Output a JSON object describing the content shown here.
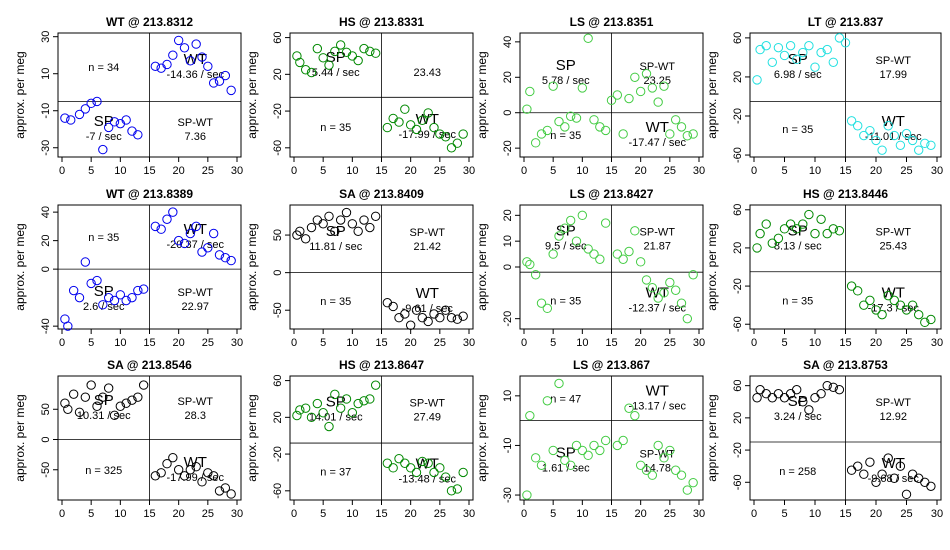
{
  "chart_data": [
    {
      "type": "scatter",
      "title": "WT @ 213.8312",
      "ylabel": "approx. per meg",
      "color": "#0000ee",
      "xlim": [
        0,
        30
      ],
      "ylim": [
        -35,
        32
      ],
      "xticks": [
        0,
        5,
        10,
        15,
        20,
        25,
        30
      ],
      "yticks": [
        30,
        10,
        -10,
        -30
      ],
      "split_x": 15,
      "split_y": -5,
      "quadrants": {
        "top_left": {
          "label": "",
          "rate": "",
          "n": "n = 34"
        },
        "top_right": {
          "label": "WT",
          "rate": "-14.36 / sec",
          "n": ""
        },
        "bottom_left": {
          "label": "SP",
          "rate": "-7 / sec",
          "n": ""
        },
        "bottom_right": {
          "label": "SP-WT",
          "rate": "7.36",
          "n": ""
        }
      },
      "x": [
        0.5,
        1.5,
        3,
        4,
        5,
        6,
        7,
        8,
        9,
        10,
        11,
        12,
        13,
        16,
        17,
        18,
        19,
        20,
        21,
        22,
        23,
        24,
        25,
        26,
        27,
        28,
        29
      ],
      "y": [
        -14,
        -15,
        -12,
        -9,
        -6,
        -5,
        -31,
        -19,
        -16,
        -17,
        -15,
        -21,
        -23,
        14,
        13,
        15,
        20,
        28,
        24,
        17,
        26,
        19,
        14,
        5,
        6,
        9,
        1
      ]
    },
    {
      "type": "scatter",
      "title": "HS @ 213.8331",
      "ylabel": "approx. per meg",
      "color": "#008800",
      "xlim": [
        0,
        30
      ],
      "ylim": [
        -70,
        65
      ],
      "xticks": [
        0,
        5,
        10,
        15,
        20,
        25,
        30
      ],
      "yticks": [
        60,
        20,
        -20,
        -60
      ],
      "split_x": 15,
      "split_y": -5,
      "quadrants": {
        "top_left": {
          "label": "SP",
          "rate": "5.44 / sec",
          "n": ""
        },
        "top_right": {
          "label": "",
          "rate": "23.43",
          "n": ""
        },
        "bottom_left": {
          "label": "",
          "rate": "",
          "n": "n = 35"
        },
        "bottom_right": {
          "label": "WT",
          "rate": "-17.99 / sec",
          "n": ""
        }
      },
      "x": [
        0.5,
        1,
        2,
        3,
        4,
        5,
        6,
        7,
        8,
        9,
        10,
        11,
        12,
        13,
        14,
        16,
        17,
        18,
        19,
        20,
        21,
        22,
        23,
        24,
        25,
        26,
        27,
        28,
        29
      ],
      "y": [
        40,
        33,
        25,
        22,
        48,
        38,
        30,
        45,
        52,
        44,
        40,
        35,
        48,
        45,
        43,
        -38,
        -28,
        -32,
        -18,
        -35,
        -40,
        -30,
        -22,
        -38,
        -45,
        -48,
        -60,
        -55,
        -45
      ]
    },
    {
      "type": "scatter",
      "title": "LS @ 213.8351",
      "ylabel": "approx. per meg",
      "color": "#44cc44",
      "xlim": [
        0,
        30
      ],
      "ylim": [
        -25,
        45
      ],
      "xticks": [
        0,
        5,
        10,
        15,
        20,
        25,
        30
      ],
      "yticks": [
        40,
        20,
        0,
        -20
      ],
      "split_x": 15,
      "split_y": 0,
      "quadrants": {
        "top_left": {
          "label": "SP",
          "rate": "5.78 / sec",
          "n": ""
        },
        "top_right": {
          "label": "SP-WT",
          "rate": "23.25",
          "n": ""
        },
        "bottom_left": {
          "label": "",
          "rate": "",
          "n": "n = 35"
        },
        "bottom_right": {
          "label": "WT",
          "rate": "-17.47 / sec",
          "n": ""
        }
      },
      "x": [
        0.5,
        1,
        2,
        3,
        4,
        5,
        6,
        7,
        8,
        9,
        10,
        11,
        12,
        13,
        14,
        15,
        16,
        17,
        18,
        19,
        20,
        21,
        22,
        23,
        24,
        25,
        26,
        27,
        28,
        29
      ],
      "y": [
        2,
        12,
        -17,
        -12,
        -10,
        15,
        -5,
        -8,
        -2,
        -3,
        14,
        42,
        -4,
        -8,
        -10,
        7,
        10,
        -12,
        8,
        20,
        12,
        22,
        14,
        6,
        15,
        -12,
        -4,
        -8,
        -13,
        -12
      ]
    },
    {
      "type": "scatter",
      "title": "LT @ 213.837",
      "ylabel": "approx. per meg",
      "color": "#22e0e0",
      "xlim": [
        0,
        30
      ],
      "ylim": [
        -62,
        65
      ],
      "xticks": [
        0,
        5,
        10,
        15,
        20,
        25,
        30
      ],
      "yticks": [
        60,
        20,
        -20,
        -60
      ],
      "split_x": 15,
      "split_y": -5,
      "quadrants": {
        "top_left": {
          "label": "SP",
          "rate": "6.98 / sec",
          "n": ""
        },
        "top_right": {
          "label": "SP-WT",
          "rate": "17.99",
          "n": ""
        },
        "bottom_left": {
          "label": "",
          "rate": "",
          "n": "n = 35"
        },
        "bottom_right": {
          "label": "WT",
          "rate": "-11.01 / sec",
          "n": ""
        }
      },
      "x": [
        0.5,
        1,
        2,
        3,
        4,
        5,
        6,
        7,
        8,
        9,
        10,
        11,
        12,
        13,
        14,
        15,
        16,
        17,
        18,
        19,
        20,
        21,
        22,
        23,
        24,
        25,
        26,
        27,
        28,
        29
      ],
      "y": [
        17,
        48,
        52,
        35,
        50,
        42,
        52,
        38,
        45,
        52,
        30,
        45,
        48,
        35,
        60,
        55,
        -25,
        -30,
        -40,
        -35,
        -45,
        -55,
        -30,
        -40,
        -50,
        -38,
        -45,
        -55,
        -48,
        -50
      ]
    },
    {
      "type": "scatter",
      "title": "WT @ 213.8389",
      "ylabel": "approx. per meg",
      "color": "#0000ee",
      "xlim": [
        0,
        30
      ],
      "ylim": [
        -42,
        45
      ],
      "xticks": [
        0,
        5,
        10,
        15,
        20,
        25,
        30
      ],
      "yticks": [
        40,
        20,
        0,
        -40
      ],
      "split_x": 15,
      "split_y": 0,
      "quadrants": {
        "top_left": {
          "label": "",
          "rate": "",
          "n": "n = 35"
        },
        "top_right": {
          "label": "WT",
          "rate": "-20.37 / sec",
          "n": ""
        },
        "bottom_left": {
          "label": "SP",
          "rate": "2.6 / sec",
          "n": ""
        },
        "bottom_right": {
          "label": "SP-WT",
          "rate": "22.97",
          "n": ""
        }
      },
      "x": [
        0.5,
        1,
        2,
        3,
        4,
        5,
        6,
        7,
        8,
        9,
        10,
        11,
        12,
        13,
        14,
        16,
        17,
        18,
        19,
        20,
        21,
        22,
        23,
        24,
        25,
        26,
        27,
        28,
        29
      ],
      "y": [
        -35,
        -40,
        -15,
        -20,
        5,
        -10,
        -8,
        -25,
        -20,
        -22,
        -18,
        -22,
        -20,
        -15,
        -14,
        30,
        28,
        35,
        40,
        20,
        18,
        25,
        30,
        12,
        15,
        25,
        10,
        8,
        6
      ]
    },
    {
      "type": "scatter",
      "title": "SA @ 213.8409",
      "ylabel": "approx. per meg",
      "color": "#000000",
      "xlim": [
        0,
        30
      ],
      "ylim": [
        -75,
        90
      ],
      "xticks": [
        0,
        5,
        10,
        15,
        20,
        25,
        30
      ],
      "yticks": [
        50,
        0,
        -50
      ],
      "split_x": 15,
      "split_y": 0,
      "quadrants": {
        "top_left": {
          "label": "SP",
          "rate": "11.81 / sec",
          "n": ""
        },
        "top_right": {
          "label": "SP-WT",
          "rate": "21.42",
          "n": ""
        },
        "bottom_left": {
          "label": "",
          "rate": "",
          "n": "n = 35"
        },
        "bottom_right": {
          "label": "WT",
          "rate": "-9.61 / sec",
          "n": ""
        }
      },
      "x": [
        0.5,
        1,
        2,
        3,
        4,
        5,
        6,
        7,
        8,
        9,
        10,
        11,
        12,
        13,
        14,
        16,
        17,
        18,
        19,
        20,
        21,
        22,
        23,
        24,
        25,
        26,
        27,
        28,
        29
      ],
      "y": [
        50,
        55,
        45,
        60,
        70,
        65,
        75,
        55,
        70,
        80,
        65,
        55,
        70,
        60,
        75,
        -40,
        -45,
        -60,
        -55,
        -70,
        -50,
        -60,
        -65,
        -55,
        -60,
        -50,
        -60,
        -62,
        -58
      ]
    },
    {
      "type": "scatter",
      "title": "LS @ 213.8427",
      "ylabel": "approx. per meg",
      "color": "#44cc44",
      "xlim": [
        0,
        30
      ],
      "ylim": [
        -24,
        24
      ],
      "xticks": [
        0,
        5,
        10,
        15,
        20,
        25,
        30
      ],
      "yticks": [
        20,
        10,
        0,
        -20
      ],
      "split_x": 15,
      "split_y": -2,
      "quadrants": {
        "top_left": {
          "label": "SP",
          "rate": "9.5 / sec",
          "n": ""
        },
        "top_right": {
          "label": "SP-WT",
          "rate": "21.87",
          "n": ""
        },
        "bottom_left": {
          "label": "",
          "rate": "",
          "n": "n = 35"
        },
        "bottom_right": {
          "label": "WT",
          "rate": "-12.37 / sec",
          "n": ""
        }
      },
      "x": [
        0.5,
        1,
        2,
        3,
        4,
        5,
        6,
        7,
        8,
        9,
        10,
        11,
        12,
        13,
        14,
        16,
        17,
        18,
        19,
        20,
        21,
        22,
        23,
        24,
        25,
        26,
        27,
        28,
        29
      ],
      "y": [
        2,
        1,
        -3,
        -14,
        -16,
        5,
        12,
        15,
        18,
        10,
        20,
        7,
        5,
        3,
        17,
        5,
        3,
        6,
        14,
        2,
        -5,
        -8,
        -12,
        -10,
        -6,
        -9,
        -14,
        -20,
        -3
      ]
    },
    {
      "type": "scatter",
      "title": "HS @ 213.8446",
      "ylabel": "approx. per meg",
      "color": "#008800",
      "xlim": [
        0,
        30
      ],
      "ylim": [
        -65,
        65
      ],
      "xticks": [
        0,
        5,
        10,
        15,
        20,
        25,
        30
      ],
      "yticks": [
        60,
        20,
        -20,
        -60
      ],
      "split_x": 15,
      "split_y": -5,
      "quadrants": {
        "top_left": {
          "label": "SP",
          "rate": "8.13 / sec",
          "n": ""
        },
        "top_right": {
          "label": "SP-WT",
          "rate": "25.43",
          "n": ""
        },
        "bottom_left": {
          "label": "",
          "rate": "",
          "n": "n = 35"
        },
        "bottom_right": {
          "label": "WT",
          "rate": "-17.3 / sec",
          "n": ""
        }
      },
      "x": [
        0.5,
        1,
        2,
        3,
        4,
        5,
        6,
        7,
        8,
        9,
        10,
        11,
        12,
        13,
        14,
        16,
        17,
        18,
        19,
        20,
        21,
        22,
        23,
        24,
        25,
        26,
        27,
        28,
        29
      ],
      "y": [
        20,
        35,
        45,
        25,
        30,
        40,
        45,
        40,
        45,
        55,
        35,
        50,
        35,
        40,
        38,
        -20,
        -25,
        -40,
        -35,
        -45,
        -50,
        -30,
        -35,
        -40,
        -45,
        -40,
        -50,
        -58,
        -55
      ]
    },
    {
      "type": "scatter",
      "title": "SA @ 213.8546",
      "ylabel": "approx. per meg",
      "color": "#000000",
      "xlim": [
        0,
        30
      ],
      "ylim": [
        -100,
        105
      ],
      "xticks": [
        0,
        5,
        10,
        15,
        20,
        25,
        30
      ],
      "yticks": [
        50,
        0,
        -50
      ],
      "split_x": 15,
      "split_y": 0,
      "quadrants": {
        "top_left": {
          "label": "SP",
          "rate": "10.31 / sec",
          "n": ""
        },
        "top_right": {
          "label": "SP-WT",
          "rate": "28.3",
          "n": ""
        },
        "bottom_left": {
          "label": "",
          "rate": "",
          "n": "n = 325"
        },
        "bottom_right": {
          "label": "WT",
          "rate": "-17.99 / sec",
          "n": ""
        }
      },
      "x": [
        0.5,
        1,
        2,
        3,
        4,
        5,
        6,
        7,
        8,
        9,
        10,
        11,
        12,
        13,
        14,
        16,
        17,
        18,
        19,
        20,
        21,
        22,
        23,
        24,
        25,
        26,
        27,
        28,
        29
      ],
      "y": [
        60,
        50,
        75,
        45,
        70,
        90,
        55,
        70,
        85,
        40,
        55,
        60,
        65,
        70,
        90,
        -60,
        -55,
        -40,
        -30,
        -50,
        -60,
        -50,
        -45,
        -70,
        -55,
        -60,
        -85,
        -80,
        -90
      ]
    },
    {
      "type": "scatter",
      "title": "HS @ 213.8647",
      "ylabel": "approx. per meg",
      "color": "#008800",
      "xlim": [
        0,
        30
      ],
      "ylim": [
        -70,
        65
      ],
      "xticks": [
        0,
        5,
        10,
        15,
        20,
        25,
        30
      ],
      "yticks": [
        60,
        20,
        -20,
        -60
      ],
      "split_x": 15,
      "split_y": -8,
      "quadrants": {
        "top_left": {
          "label": "SP",
          "rate": "14.01 / sec",
          "n": ""
        },
        "top_right": {
          "label": "SP-WT",
          "rate": "27.49",
          "n": ""
        },
        "bottom_left": {
          "label": "",
          "rate": "",
          "n": "n = 37"
        },
        "bottom_right": {
          "label": "WT",
          "rate": "-13.48 / sec",
          "n": ""
        }
      },
      "x": [
        0.5,
        1,
        2,
        3,
        4,
        5,
        6,
        7,
        8,
        9,
        10,
        11,
        12,
        13,
        14,
        16,
        17,
        18,
        19,
        20,
        21,
        22,
        23,
        24,
        25,
        26,
        27,
        28,
        29
      ],
      "y": [
        22,
        28,
        30,
        20,
        35,
        25,
        10,
        45,
        30,
        40,
        25,
        35,
        38,
        40,
        55,
        -30,
        -35,
        -25,
        -30,
        -35,
        -40,
        -28,
        -30,
        -40,
        -35,
        -45,
        -60,
        -58,
        -40
      ]
    },
    {
      "type": "scatter",
      "title": "LS @ 213.867",
      "ylabel": "approx. per meg",
      "color": "#44cc44",
      "xlim": [
        0,
        30
      ],
      "ylim": [
        -32,
        18
      ],
      "xticks": [
        0,
        5,
        10,
        15,
        20,
        25,
        30
      ],
      "yticks": [
        10,
        -10,
        -30
      ],
      "split_x": 15,
      "split_y": 0,
      "quadrants": {
        "top_left": {
          "label": "",
          "rate": "",
          "n": "n = 47"
        },
        "top_right": {
          "label": "WT",
          "rate": "-13.17 / sec",
          "n": ""
        },
        "bottom_left": {
          "label": "SP",
          "rate": "1.61 / sec",
          "n": ""
        },
        "bottom_right": {
          "label": "SP-WT",
          "rate": "14.78",
          "n": ""
        }
      },
      "x": [
        0.5,
        1,
        2,
        3,
        4,
        5,
        6,
        7,
        8,
        9,
        10,
        11,
        12,
        13,
        14,
        16,
        17,
        18,
        19,
        20,
        21,
        22,
        23,
        24,
        25,
        26,
        27,
        28,
        29
      ],
      "y": [
        -30,
        2,
        -15,
        -18,
        8,
        -12,
        15,
        -16,
        -18,
        -10,
        -12,
        -14,
        -10,
        -12,
        -8,
        -10,
        -8,
        5,
        2,
        -18,
        -20,
        -22,
        -10,
        -15,
        -12,
        -20,
        -22,
        -28,
        -25
      ]
    },
    {
      "type": "scatter",
      "title": "SA @ 213.8753",
      "ylabel": "approx. per meg",
      "color": "#000000",
      "xlim": [
        0,
        30
      ],
      "ylim": [
        -82,
        72
      ],
      "xticks": [
        0,
        5,
        10,
        15,
        20,
        25,
        30
      ],
      "yticks": [
        60,
        20,
        -20,
        -60
      ],
      "split_x": 15,
      "split_y": -10,
      "quadrants": {
        "top_left": {
          "label": "SP",
          "rate": "3.24 / sec",
          "n": ""
        },
        "top_right": {
          "label": "SP-WT",
          "rate": "12.92",
          "n": ""
        },
        "bottom_left": {
          "label": "",
          "rate": "",
          "n": "n = 258"
        },
        "bottom_right": {
          "label": "WT",
          "rate": "-9.68 / sec",
          "n": ""
        }
      },
      "x": [
        0.5,
        1,
        2,
        3,
        4,
        5,
        6,
        7,
        8,
        9,
        10,
        11,
        12,
        13,
        14,
        16,
        17,
        18,
        19,
        20,
        21,
        22,
        23,
        24,
        25,
        26,
        27,
        28,
        29
      ],
      "y": [
        45,
        55,
        50,
        45,
        50,
        45,
        50,
        55,
        40,
        30,
        45,
        50,
        60,
        58,
        55,
        -45,
        -40,
        -50,
        -35,
        -60,
        -50,
        -30,
        -55,
        -40,
        -75,
        -50,
        -55,
        -60,
        -65
      ]
    }
  ]
}
